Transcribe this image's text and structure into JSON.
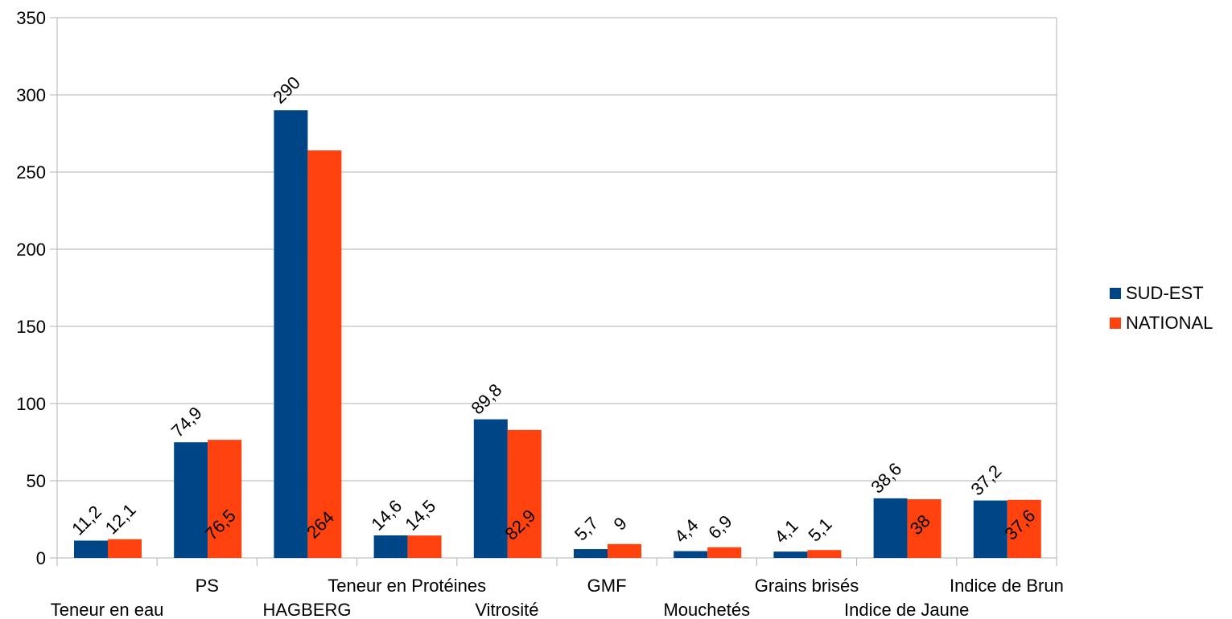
{
  "chart_data": {
    "type": "bar",
    "title": "",
    "xlabel": "",
    "ylabel": "",
    "ylim": [
      0,
      350
    ],
    "y_ticks": [
      0,
      50,
      100,
      150,
      200,
      250,
      300,
      350
    ],
    "grid": "horizontal",
    "legend_position": "right",
    "categories": [
      "Teneur en eau",
      "PS",
      "HAGBERG",
      "Teneur en Protéines",
      "Vitrosité",
      "GMF",
      "Mouchetés",
      "Grains brisés",
      "Indice de Jaune",
      "Indice de Brun"
    ],
    "series": [
      {
        "name": "SUD-EST",
        "color": "#004586",
        "values": [
          11.2,
          74.9,
          290,
          14.6,
          89.8,
          5.7,
          4.4,
          4.1,
          38.6,
          37.2
        ],
        "labels": [
          "11,2",
          "74,9",
          "290",
          "14,6",
          "89,8",
          "5,7",
          "4,4",
          "4,1",
          "38,6",
          "37,2"
        ]
      },
      {
        "name": "NATIONAL",
        "color": "#ff420e",
        "values": [
          12.1,
          76.5,
          264,
          14.5,
          82.9,
          9,
          6.9,
          5.1,
          38,
          37.6
        ],
        "labels": [
          "12,1",
          "76,5",
          "264",
          "14,5",
          "82,9",
          "9",
          "6,9",
          "5,1",
          "38",
          "37,6"
        ]
      }
    ]
  }
}
